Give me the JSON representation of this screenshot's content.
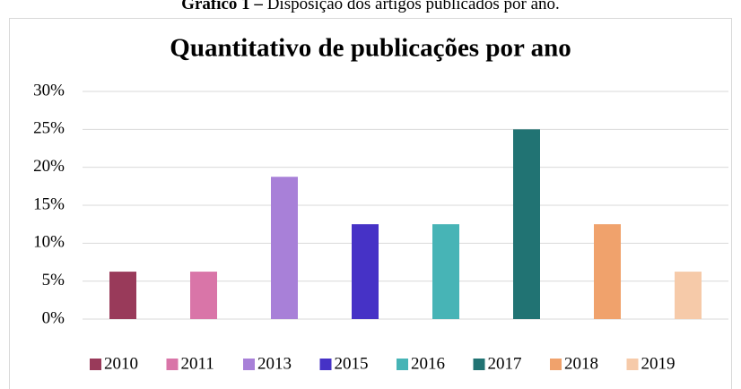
{
  "caption_label": "Gráfico 1 –",
  "caption": "Disposição dos artigos publicados por ano.",
  "chart_data": {
    "type": "bar",
    "title": "Quantitativo de publicações por ano",
    "categories": [
      "2010",
      "2011",
      "2013",
      "2015",
      "2016",
      "2017",
      "2018",
      "2019"
    ],
    "values": [
      6.25,
      6.25,
      18.75,
      12.5,
      12.5,
      25,
      12.5,
      6.25
    ],
    "colors": [
      "#993a5a",
      "#d975a8",
      "#a880d8",
      "#4632c6",
      "#47b4b6",
      "#217373",
      "#f0a26c",
      "#f6caa9"
    ],
    "ylim": [
      0,
      30
    ],
    "yticks": [
      {
        "value": 0,
        "label": "0%"
      },
      {
        "value": 5,
        "label": "5%"
      },
      {
        "value": 10,
        "label": "10%"
      },
      {
        "value": 15,
        "label": "15%"
      },
      {
        "value": 20,
        "label": "20%"
      },
      {
        "value": 25,
        "label": "25%"
      },
      {
        "value": 30,
        "label": "30%"
      }
    ],
    "grid": true,
    "legend": "bottom"
  }
}
